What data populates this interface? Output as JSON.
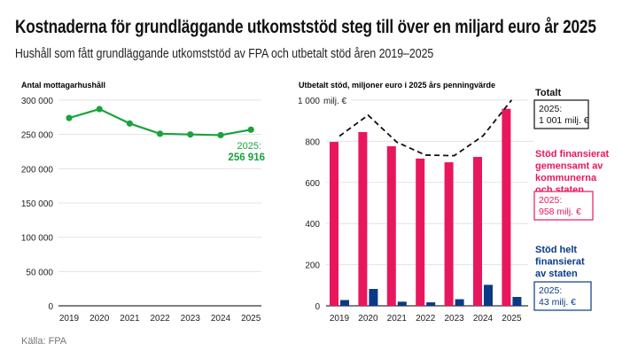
{
  "title": "Kostnaderna för grundläggande utkomststöd steg till över en miljard euro år 2025",
  "subtitle": "Hushåll som fått grundläggande utkomststöd av FPA och utbetalt stöd åren 2019–2025",
  "source": "Källa: FPA",
  "chart_data": [
    {
      "type": "line",
      "title": "Antal mottagarhushåll",
      "categories": [
        "2019",
        "2020",
        "2021",
        "2022",
        "2023",
        "2024",
        "2025"
      ],
      "values": [
        274000,
        287000,
        266000,
        251000,
        250000,
        249000,
        256916
      ],
      "ylim": [
        0,
        300000
      ],
      "yticks": [
        "0",
        "50 000",
        "100 000",
        "150 000",
        "200 000",
        "250 000",
        "300 000"
      ],
      "ytick_values": [
        0,
        50000,
        100000,
        150000,
        200000,
        250000,
        300000
      ],
      "grid": true,
      "color": "#1aa33c",
      "annotation": {
        "label": "2025:",
        "value": "256 916"
      }
    },
    {
      "type": "bar",
      "title": "Utbetalt stöd, miljoner euro i 2025 års penningvärde",
      "categories": [
        "2019",
        "2020",
        "2021",
        "2022",
        "2023",
        "2024",
        "2025"
      ],
      "ylim": [
        0,
        1000
      ],
      "yticks": [
        "0",
        "200",
        "400",
        "600",
        "800",
        "1 000"
      ],
      "ytick_values": [
        0,
        200,
        400,
        600,
        800,
        1000
      ],
      "yunit": "milj. €",
      "grid": true,
      "series": [
        {
          "name": "Stöd finansierat gemensamt av kommunerna och staten",
          "values": [
            797,
            845,
            776,
            716,
            698,
            724,
            958
          ],
          "color": "#e8175d",
          "annotation": "2025:\n958 milj. €",
          "legend_lines": [
            "Stöd finansierat",
            "gemensamt av",
            "kommunerna",
            "och staten"
          ],
          "annotation_lines": [
            "2025:",
            "958 milj. €"
          ]
        },
        {
          "name": "Stöd helt finansierat av staten",
          "values": [
            28,
            82,
            20,
            17,
            32,
            102,
            43
          ],
          "color": "#0a3a85",
          "legend_lines": [
            "Stöd helt",
            "finansierat",
            "av staten"
          ],
          "annotation_lines": [
            "2025:",
            "43 milj. €"
          ]
        },
        {
          "name": "Totalt",
          "type": "line",
          "style": "dashed",
          "values": [
            825,
            927,
            796,
            733,
            730,
            826,
            1001
          ],
          "color": "#111111",
          "legend_lines": [
            "Totalt"
          ],
          "annotation_lines": [
            "2025:",
            "1 001 milj. €"
          ]
        }
      ]
    }
  ]
}
